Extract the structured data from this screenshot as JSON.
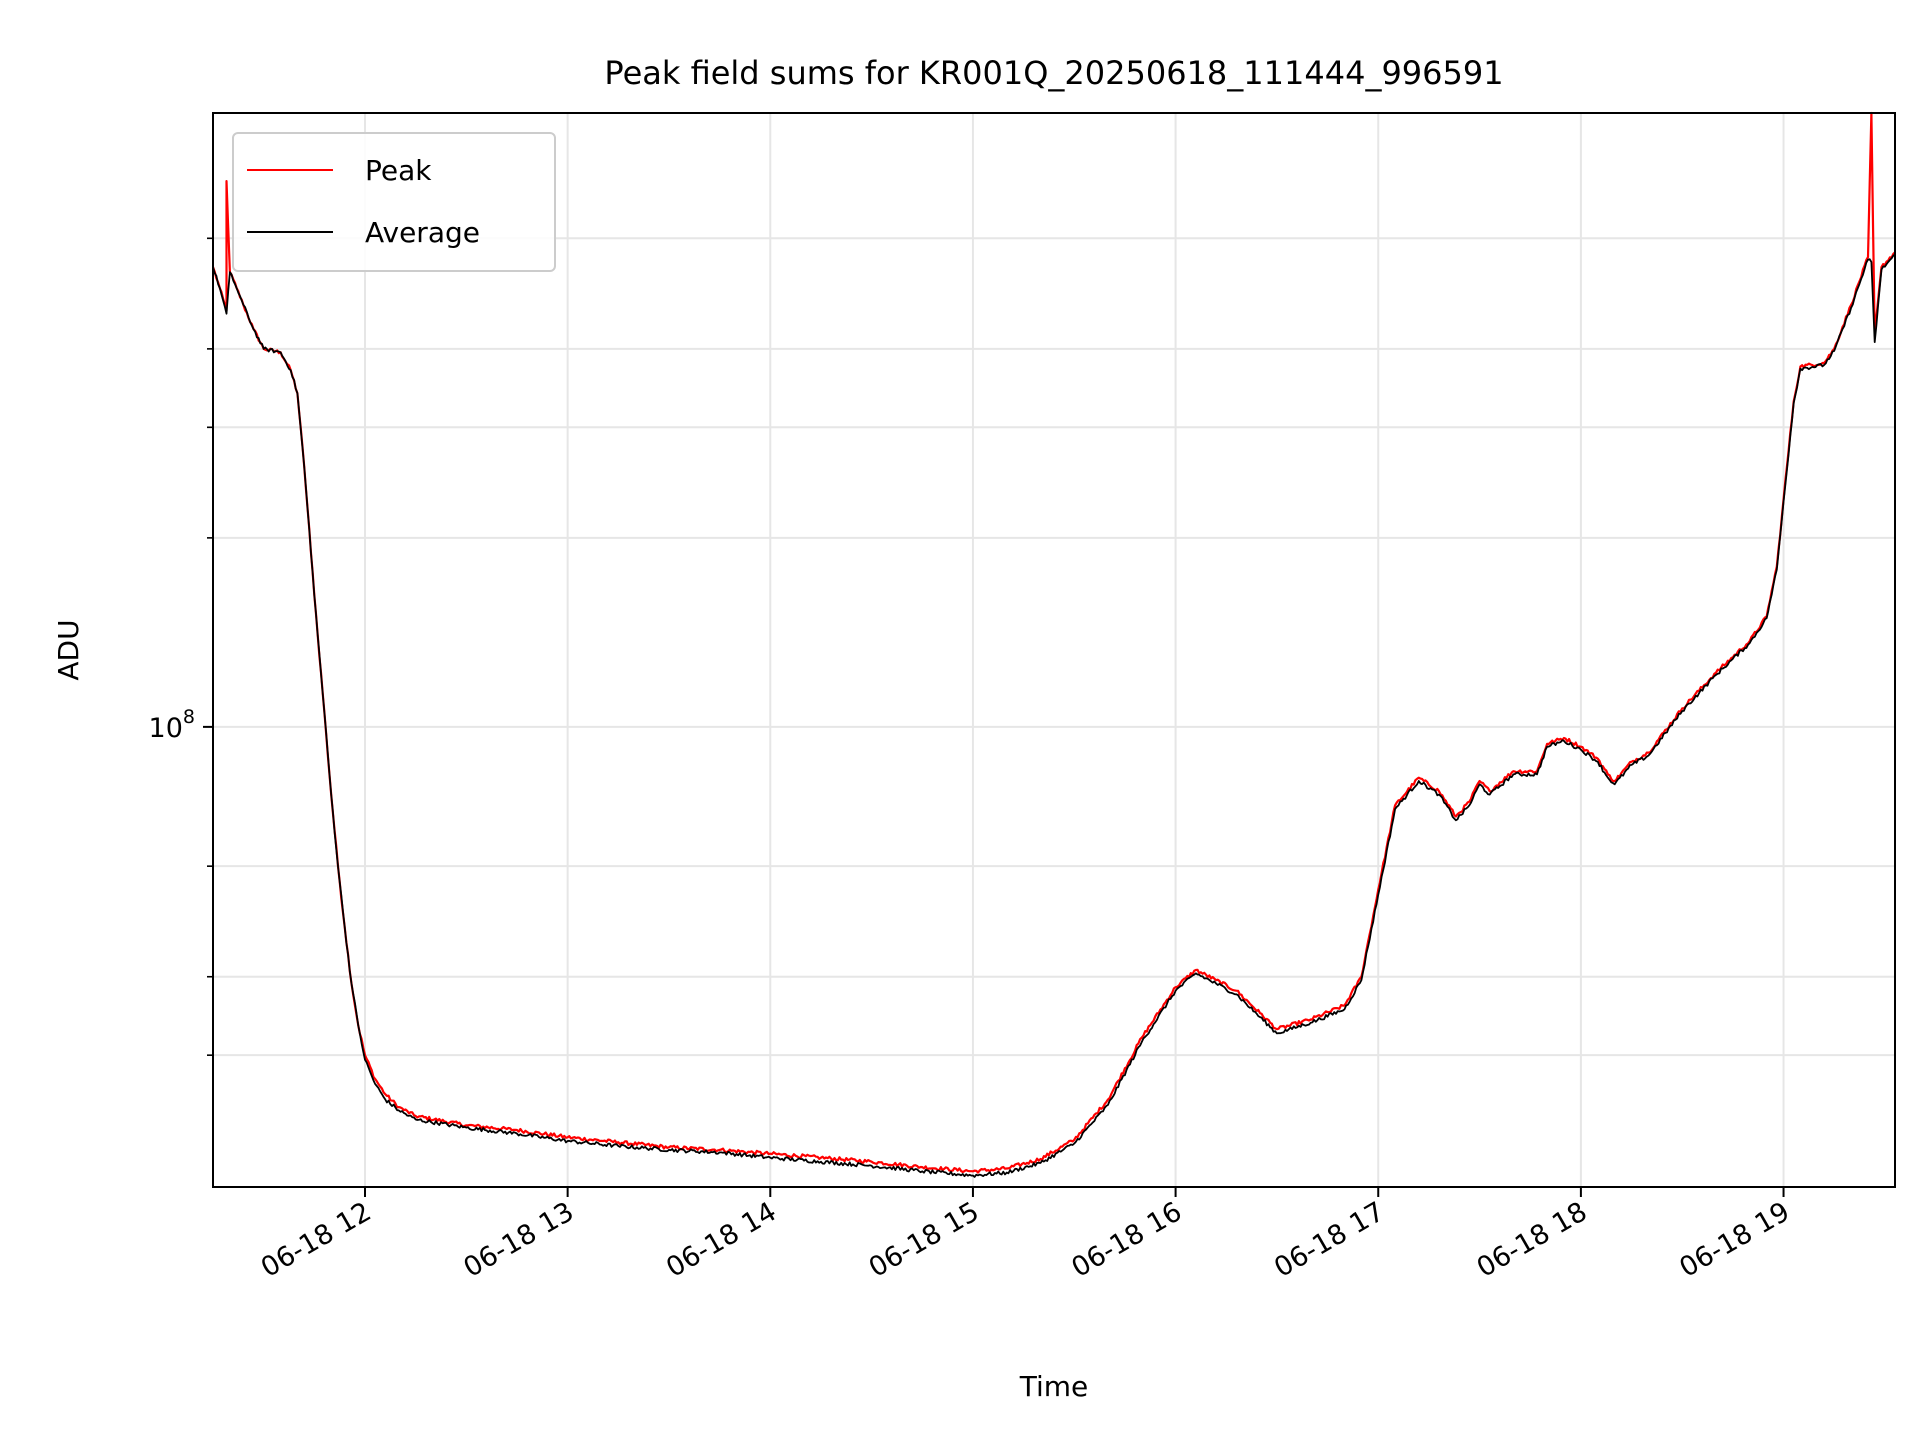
{
  "chart_data": {
    "type": "line",
    "title": "Peak field sums for KR001Q_20250618_111444_996591",
    "xlabel": "Time",
    "ylabel": "ADU",
    "yscale": "log",
    "xlim": [
      "2025-06-18 11:15",
      "2025-06-18 19:33"
    ],
    "ylim": [
      18500000.0,
      950000000.0
    ],
    "x_ticks": [
      "06-18 12",
      "06-18 13",
      "06-18 14",
      "06-18 15",
      "06-18 16",
      "06-18 17",
      "06-18 18",
      "06-18 19"
    ],
    "x_tick_times": [
      "2025-06-18 12:00",
      "2025-06-18 13:00",
      "2025-06-18 14:00",
      "2025-06-18 15:00",
      "2025-06-18 16:00",
      "2025-06-18 17:00",
      "2025-06-18 18:00",
      "2025-06-18 19:00"
    ],
    "y_major_ticks": [
      {
        "value": 100000000,
        "base": "10",
        "exp": "8"
      }
    ],
    "y_minor_ticks": [
      30000000,
      40000000,
      60000000,
      200000000,
      300000000,
      400000000,
      600000000
    ],
    "grid": true,
    "legend": {
      "position": "top-left"
    },
    "series": [
      {
        "name": "Peak",
        "color": "#ff0000",
        "points": [
          [
            "11:15",
            540000000.0
          ],
          [
            "11:17",
            500000000.0
          ],
          [
            "11:19",
            460000000.0
          ],
          [
            "11:19",
            740000000.0
          ],
          [
            "11:20",
            530000000.0
          ],
          [
            "11:22",
            500000000.0
          ],
          [
            "11:24",
            470000000.0
          ],
          [
            "11:27",
            430000000.0
          ],
          [
            "11:30",
            400000000.0
          ],
          [
            "11:35",
            395000000.0
          ],
          [
            "11:38",
            370000000.0
          ],
          [
            "11:40",
            340000000.0
          ],
          [
            "11:42",
            260000000.0
          ],
          [
            "11:44",
            190000000.0
          ],
          [
            "11:46",
            140000000.0
          ],
          [
            "11:48",
            105000000.0
          ],
          [
            "11:50",
            78000000.0
          ],
          [
            "11:52",
            60000000.0
          ],
          [
            "11:54",
            48000000.0
          ],
          [
            "11:56",
            39000000.0
          ],
          [
            "11:58",
            33500000.0
          ],
          [
            "12:00",
            30000000.0
          ],
          [
            "12:03",
            27500000.0
          ],
          [
            "12:06",
            26000000.0
          ],
          [
            "12:10",
            24800000.0
          ],
          [
            "12:15",
            24000000.0
          ],
          [
            "12:30",
            23200000.0
          ],
          [
            "12:45",
            22800000.0
          ],
          [
            "13:00",
            22200000.0
          ],
          [
            "13:15",
            21800000.0
          ],
          [
            "13:30",
            21400000.0
          ],
          [
            "13:45",
            21200000.0
          ],
          [
            "14:00",
            20900000.0
          ],
          [
            "14:15",
            20600000.0
          ],
          [
            "14:30",
            20300000.0
          ],
          [
            "14:45",
            19900000.0
          ],
          [
            "15:00",
            19600000.0
          ],
          [
            "15:10",
            19800000.0
          ],
          [
            "15:20",
            20500000.0
          ],
          [
            "15:30",
            22000000.0
          ],
          [
            "15:40",
            25500000.0
          ],
          [
            "15:50",
            32000000.0
          ],
          [
            "16:00",
            38500000.0
          ],
          [
            "16:06",
            41000000.0
          ],
          [
            "16:12",
            39500000.0
          ],
          [
            "16:18",
            38000000.0
          ],
          [
            "16:25",
            35000000.0
          ],
          [
            "16:30",
            33000000.0
          ],
          [
            "16:40",
            34200000.0
          ],
          [
            "16:50",
            36000000.0
          ],
          [
            "16:55",
            40000000.0
          ],
          [
            "17:00",
            55000000.0
          ],
          [
            "17:05",
            75000000.0
          ],
          [
            "17:12",
            83000000.0
          ],
          [
            "17:18",
            79000000.0
          ],
          [
            "17:23",
            72000000.0
          ],
          [
            "17:27",
            76000000.0
          ],
          [
            "17:30",
            82000000.0
          ],
          [
            "17:33",
            79000000.0
          ],
          [
            "17:40",
            85000000.0
          ],
          [
            "17:47",
            85000000.0
          ],
          [
            "17:50",
            94000000.0
          ],
          [
            "17:55",
            96000000.0
          ],
          [
            "18:00",
            93000000.0
          ],
          [
            "18:05",
            89000000.0
          ],
          [
            "18:08",
            84000000.0
          ],
          [
            "18:10",
            82000000.0
          ],
          [
            "18:15",
            88000000.0
          ],
          [
            "18:20",
            91000000.0
          ],
          [
            "18:30",
            107000000.0
          ],
          [
            "18:40",
            122000000.0
          ],
          [
            "18:50",
            137000000.0
          ],
          [
            "18:55",
            150000000.0
          ],
          [
            "18:58",
            180000000.0
          ],
          [
            "19:00",
            230000000.0
          ],
          [
            "19:03",
            330000000.0
          ],
          [
            "19:05",
            375000000.0
          ],
          [
            "19:12",
            380000000.0
          ],
          [
            "19:15",
            400000000.0
          ],
          [
            "19:20",
            470000000.0
          ],
          [
            "19:25",
            560000000.0
          ],
          [
            "19:26",
            950000000.0
          ],
          [
            "19:27",
            420000000.0
          ],
          [
            "19:29",
            540000000.0
          ],
          [
            "19:33",
            570000000.0
          ]
        ]
      },
      {
        "name": "Average",
        "color": "#000000",
        "points": [
          [
            "11:15",
            540000000.0
          ],
          [
            "11:17",
            500000000.0
          ],
          [
            "11:19",
            455000000.0
          ],
          [
            "11:20",
            530000000.0
          ],
          [
            "11:22",
            500000000.0
          ],
          [
            "11:24",
            470000000.0
          ],
          [
            "11:27",
            430000000.0
          ],
          [
            "11:30",
            400000000.0
          ],
          [
            "11:35",
            395000000.0
          ],
          [
            "11:38",
            370000000.0
          ],
          [
            "11:40",
            340000000.0
          ],
          [
            "11:42",
            260000000.0
          ],
          [
            "11:44",
            190000000.0
          ],
          [
            "11:46",
            140000000.0
          ],
          [
            "11:48",
            105000000.0
          ],
          [
            "11:50",
            78000000.0
          ],
          [
            "11:52",
            60000000.0
          ],
          [
            "11:54",
            48000000.0
          ],
          [
            "11:56",
            39000000.0
          ],
          [
            "11:58",
            33500000.0
          ],
          [
            "12:00",
            29500000.0
          ],
          [
            "12:03",
            27000000.0
          ],
          [
            "12:06",
            25500000.0
          ],
          [
            "12:10",
            24500000.0
          ],
          [
            "12:15",
            23700000.0
          ],
          [
            "12:30",
            23000000.0
          ],
          [
            "12:45",
            22500000.0
          ],
          [
            "13:00",
            21900000.0
          ],
          [
            "13:15",
            21500000.0
          ],
          [
            "13:30",
            21200000.0
          ],
          [
            "13:45",
            21000000.0
          ],
          [
            "14:00",
            20600000.0
          ],
          [
            "14:15",
            20300000.0
          ],
          [
            "14:30",
            20000000.0
          ],
          [
            "14:45",
            19600000.0
          ],
          [
            "15:00",
            19300000.0
          ],
          [
            "15:10",
            19500000.0
          ],
          [
            "15:20",
            20200000.0
          ],
          [
            "15:30",
            21700000.0
          ],
          [
            "15:40",
            25000000.0
          ],
          [
            "15:50",
            31500000.0
          ],
          [
            "16:00",
            38000000.0
          ],
          [
            "16:06",
            40500000.0
          ],
          [
            "16:12",
            39000000.0
          ],
          [
            "16:18",
            37500000.0
          ],
          [
            "16:25",
            34500000.0
          ],
          [
            "16:30",
            32500000.0
          ],
          [
            "16:40",
            33800000.0
          ],
          [
            "16:50",
            35500000.0
          ],
          [
            "16:55",
            39500000.0
          ],
          [
            "17:00",
            54000000.0
          ],
          [
            "17:05",
            74000000.0
          ],
          [
            "17:12",
            82000000.0
          ],
          [
            "17:18",
            78000000.0
          ],
          [
            "17:23",
            71000000.0
          ],
          [
            "17:27",
            75000000.0
          ],
          [
            "17:30",
            81000000.0
          ],
          [
            "17:33",
            78000000.0
          ],
          [
            "17:40",
            84000000.0
          ],
          [
            "17:47",
            84000000.0
          ],
          [
            "17:50",
            93000000.0
          ],
          [
            "17:55",
            95000000.0
          ],
          [
            "18:00",
            92000000.0
          ],
          [
            "18:05",
            88000000.0
          ],
          [
            "18:08",
            83000000.0
          ],
          [
            "18:10",
            81000000.0
          ],
          [
            "18:15",
            87000000.0
          ],
          [
            "18:20",
            90000000.0
          ],
          [
            "18:30",
            106000000.0
          ],
          [
            "18:40",
            121000000.0
          ],
          [
            "18:50",
            136000000.0
          ],
          [
            "18:55",
            149000000.0
          ],
          [
            "18:58",
            178000000.0
          ],
          [
            "19:00",
            228000000.0
          ],
          [
            "19:03",
            328000000.0
          ],
          [
            "19:05",
            372000000.0
          ],
          [
            "19:12",
            377000000.0
          ],
          [
            "19:15",
            397000000.0
          ],
          [
            "19:20",
            465000000.0
          ],
          [
            "19:25",
            555000000.0
          ],
          [
            "19:26",
            550000000.0
          ],
          [
            "19:27",
            410000000.0
          ],
          [
            "19:29",
            535000000.0
          ],
          [
            "19:33",
            565000000.0
          ]
        ]
      }
    ]
  }
}
